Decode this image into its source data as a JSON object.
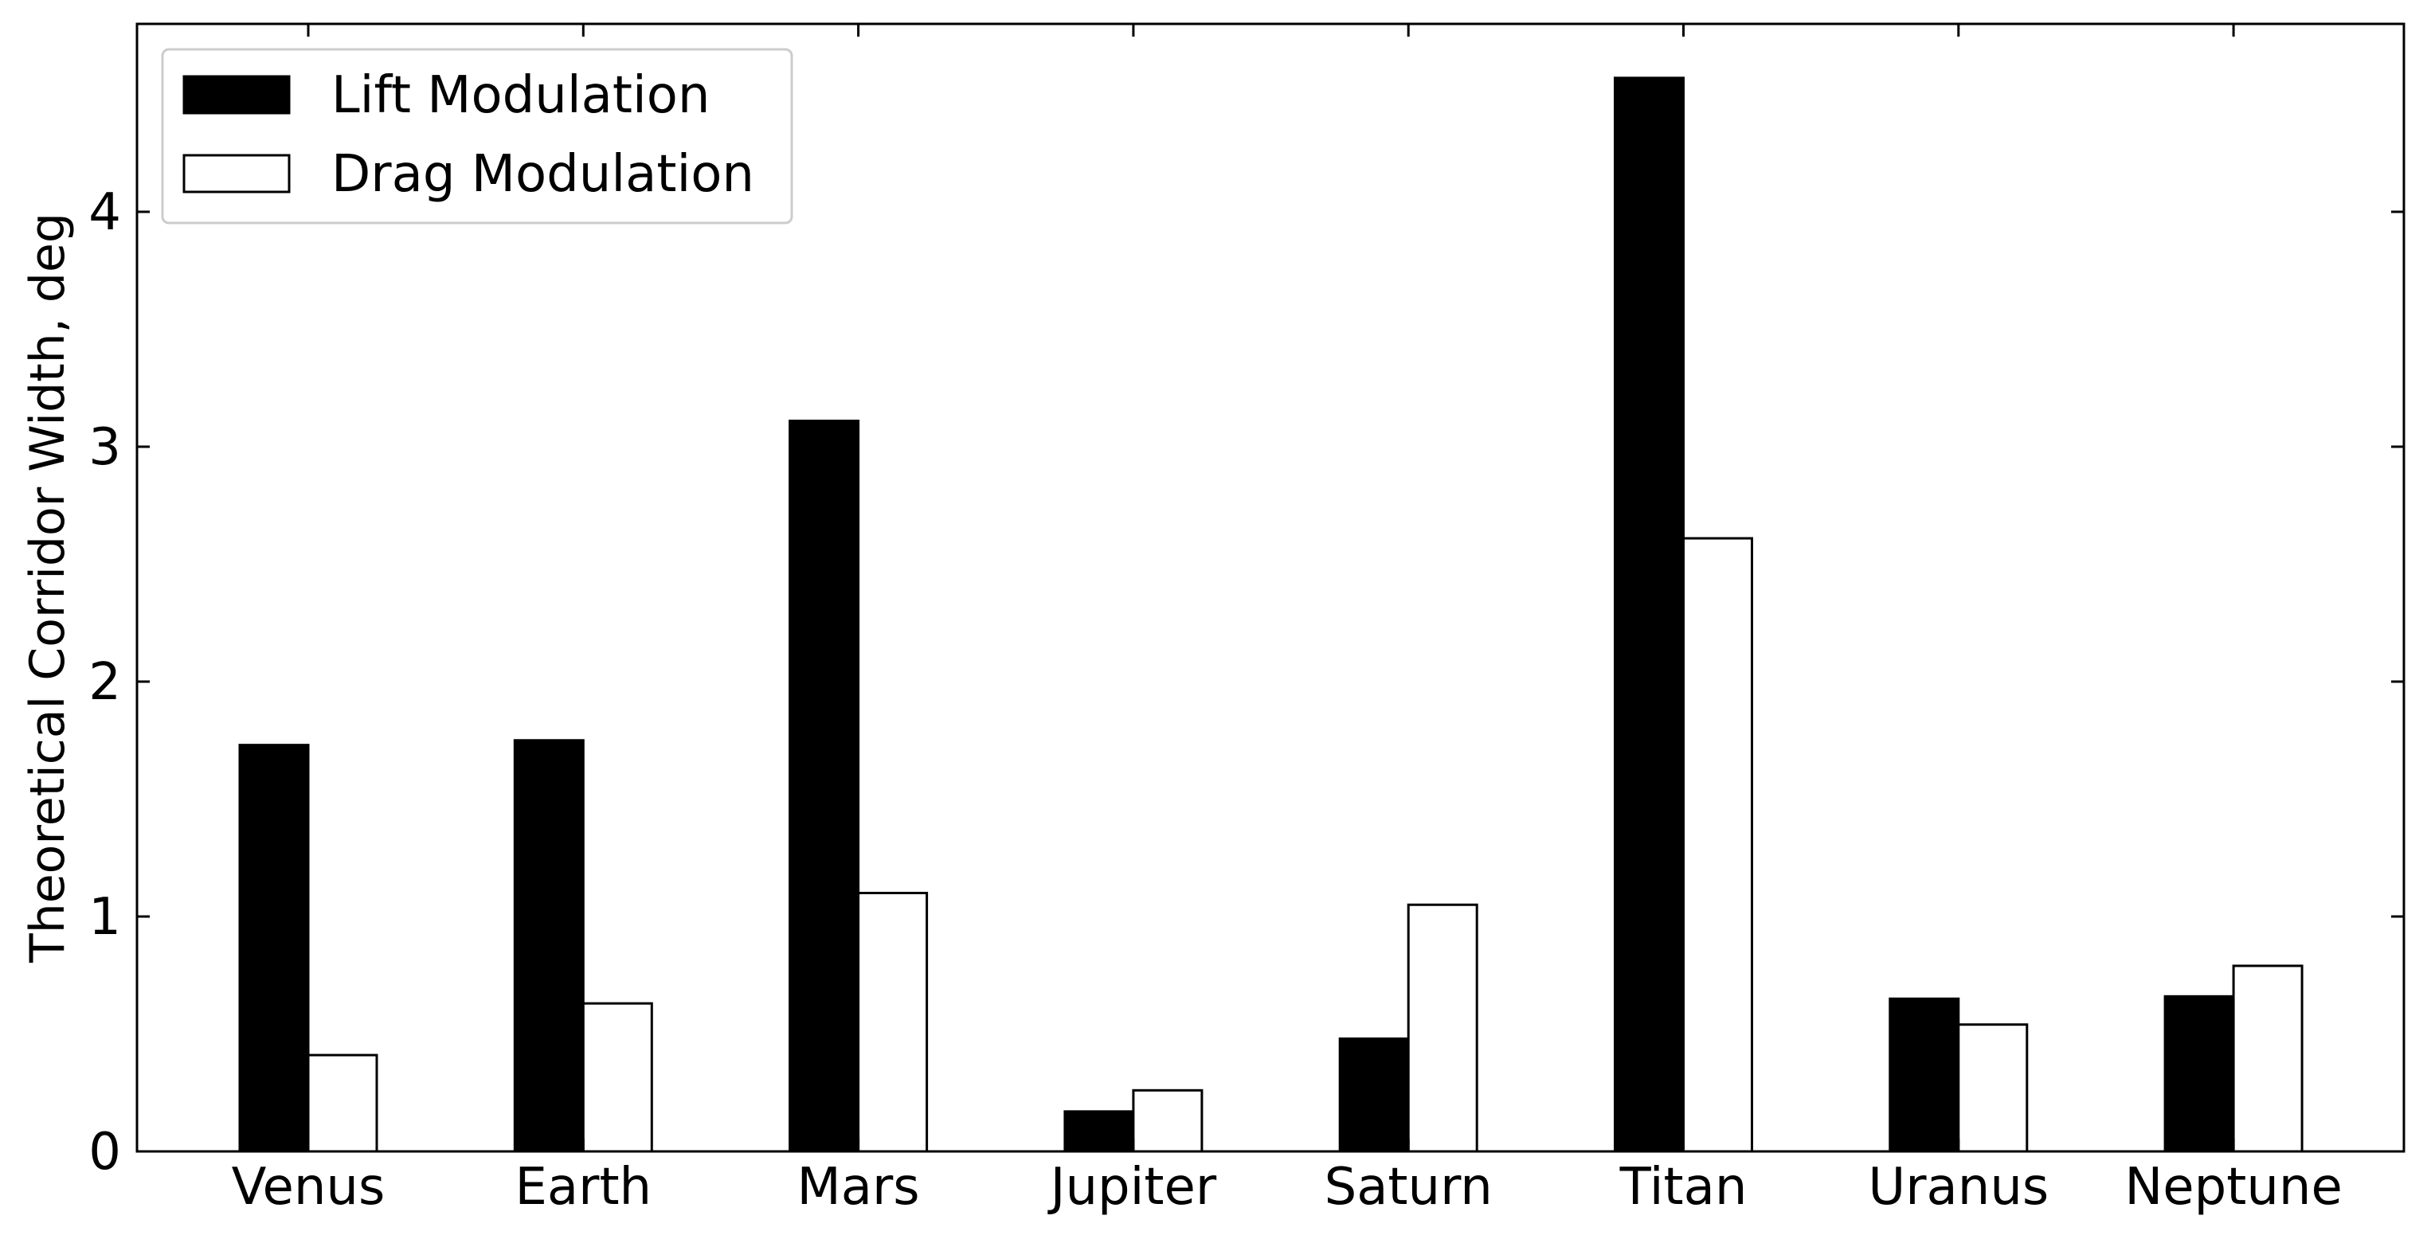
{
  "chart_data": {
    "type": "bar",
    "categories": [
      "Venus",
      "Earth",
      "Mars",
      "Jupiter",
      "Saturn",
      "Titan",
      "Uranus",
      "Neptune"
    ],
    "series": [
      {
        "name": "Lift Modulation",
        "color": "#000000",
        "values": [
          1.73,
          1.75,
          3.11,
          0.17,
          0.48,
          4.57,
          0.65,
          0.66
        ]
      },
      {
        "name": "Drag Modulation",
        "color": "#ffffff",
        "values": [
          0.41,
          0.63,
          1.1,
          0.26,
          1.05,
          2.61,
          0.54,
          0.79
        ]
      }
    ],
    "title": "",
    "xlabel": "",
    "ylabel": "Theoretical Corridor Width, deg",
    "ylim": [
      0,
      4.8
    ],
    "yticks": [
      0,
      1,
      2,
      3,
      4
    ],
    "grid": false,
    "legend_position": "top-left"
  }
}
